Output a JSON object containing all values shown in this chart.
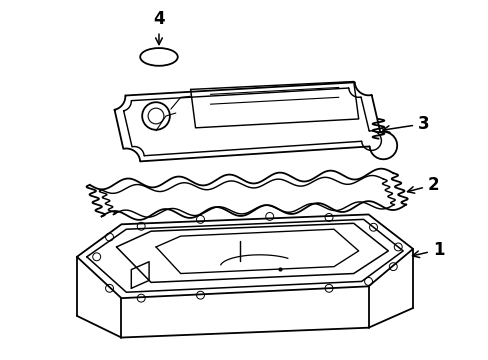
{
  "background_color": "#ffffff",
  "line_color": "#000000",
  "line_width": 1.3,
  "label_fontsize": 11,
  "arrow_color": "#000000"
}
